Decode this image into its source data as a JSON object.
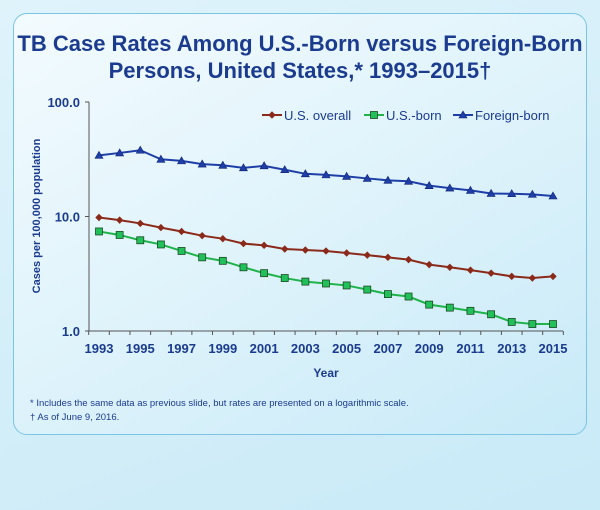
{
  "title": "TB Case Rates Among U.S.-Born versus Foreign-Born Persons, United States,* 1993–2015†",
  "footnotes": [
    "*  Includes the same data as previous slide, but rates are presented on a logarithmic scale.",
    "†  As of June 9, 2016."
  ],
  "chart_data": {
    "type": "line",
    "title": "TB Case Rates Among U.S.-Born versus Foreign-Born Persons, United States,* 1993–2015†",
    "xlabel": "Year",
    "ylabel": "Cases per 100,000 population",
    "yscale": "log",
    "ylim": [
      1,
      100
    ],
    "yticks": [
      "1.0",
      "10.0",
      "100.0"
    ],
    "xticks": [
      "1993",
      "1995",
      "1997",
      "1999",
      "2001",
      "2003",
      "2005",
      "2007",
      "2009",
      "2011",
      "2013",
      "2015"
    ],
    "x": [
      1993,
      1994,
      1995,
      1996,
      1997,
      1998,
      1999,
      2000,
      2001,
      2002,
      2003,
      2004,
      2005,
      2006,
      2007,
      2008,
      2009,
      2010,
      2011,
      2012,
      2013,
      2014,
      2015
    ],
    "legend": "top-right",
    "series": [
      {
        "name": "U.S. overall",
        "color": "#8b2a1a",
        "marker": "diamond",
        "values": [
          9.8,
          9.3,
          8.7,
          8.0,
          7.4,
          6.8,
          6.4,
          5.8,
          5.6,
          5.2,
          5.1,
          5.0,
          4.8,
          4.6,
          4.4,
          4.2,
          3.8,
          3.6,
          3.4,
          3.2,
          3.0,
          2.9,
          3.0
        ]
      },
      {
        "name": "U.S.-born",
        "color": "#1fb34a",
        "marker": "square",
        "values": [
          7.4,
          6.9,
          6.2,
          5.7,
          5.0,
          4.4,
          4.1,
          3.6,
          3.2,
          2.9,
          2.7,
          2.6,
          2.5,
          2.3,
          2.1,
          2.0,
          1.7,
          1.6,
          1.5,
          1.4,
          1.2,
          1.15,
          1.15
        ]
      },
      {
        "name": "Foreign-born",
        "color": "#1f3fa8",
        "marker": "triangle",
        "values": [
          34.2,
          35.9,
          37.9,
          31.6,
          30.6,
          28.7,
          28.0,
          26.6,
          27.7,
          25.6,
          23.6,
          23.1,
          22.4,
          21.5,
          20.7,
          20.3,
          18.6,
          17.7,
          16.9,
          15.9,
          15.8,
          15.6,
          15.1
        ]
      }
    ]
  }
}
